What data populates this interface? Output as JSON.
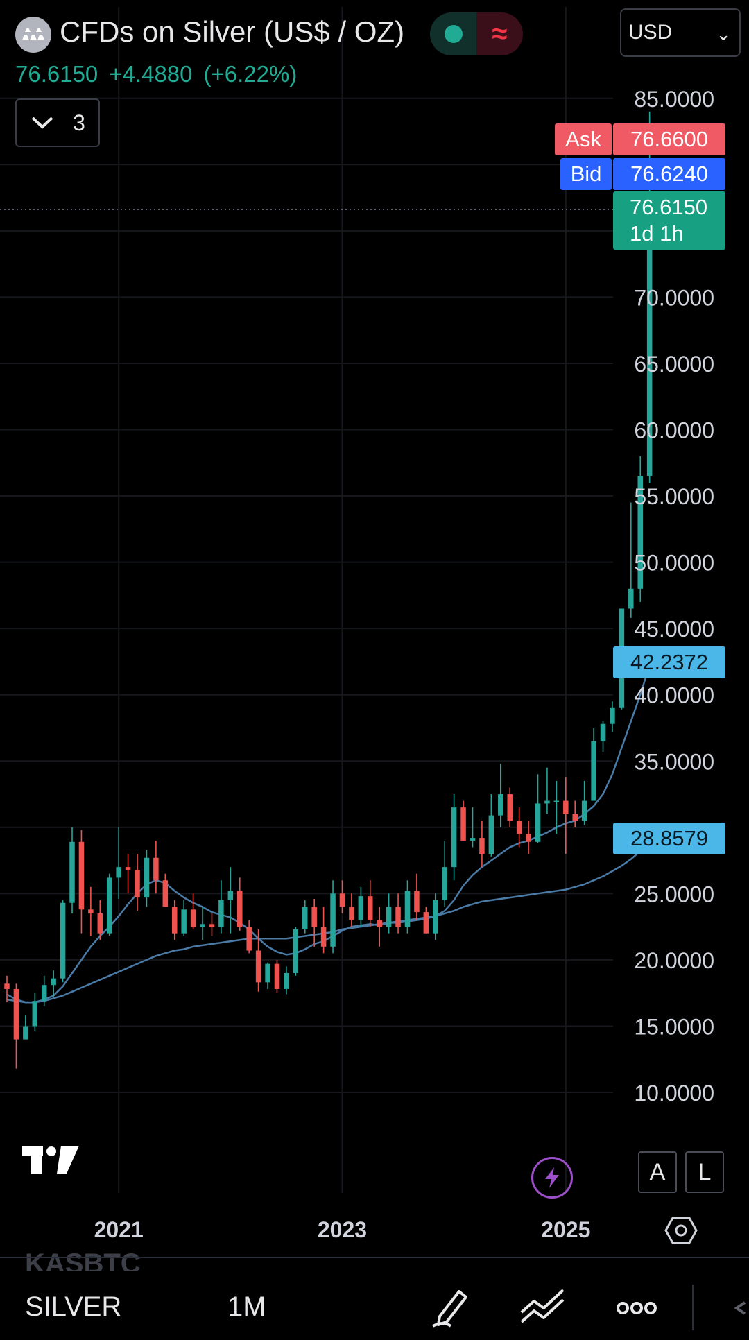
{
  "header": {
    "title": "CFDs on Silver (US$ / OZ)",
    "last_price": "76.6150",
    "change": "+4.4880",
    "change_percent": "(+6.22%)",
    "indicator_count": "3",
    "currency": "USD",
    "status_wave": "≈"
  },
  "price_tags": {
    "ask_label": "Ask",
    "ask_value": "76.6600",
    "bid_label": "Bid",
    "bid_value": "76.6240",
    "last_value": "76.6150",
    "last_countdown": "1d 1h",
    "ma1_value": "42.2372",
    "ma2_value": "28.8579"
  },
  "corner_buttons": {
    "auto": "A",
    "log": "L"
  },
  "ghost_symbol": "KASBTC",
  "toolbar": {
    "symbol": "SILVER",
    "interval": "1M"
  },
  "colors": {
    "up": "#26a69a",
    "down": "#ef5350",
    "ma": "#4a7ba6",
    "ask": "#f05a64",
    "bid": "#2962ff",
    "last": "#18a083",
    "ma_tag": "#4bb6e8"
  },
  "icons": [
    "silver-symbol-icon",
    "chevron-down-icon",
    "lightning-icon",
    "settings-hexagon-icon",
    "pencil-icon",
    "trend-lines-icon",
    "more-icon",
    "collapse-icon"
  ],
  "chart_data": {
    "type": "candlestick",
    "title": "CFDs on Silver (US$ / OZ)",
    "interval": "1M",
    "y_ticks": [
      85,
      70,
      65,
      60,
      55,
      50,
      45,
      40,
      35,
      25,
      20,
      15,
      10
    ],
    "ylim": [
      5,
      88
    ],
    "x_ticks": [
      {
        "label": "2021",
        "index": 12
      },
      {
        "label": "2023",
        "index": 36
      },
      {
        "label": "2025",
        "index": 60
      }
    ],
    "candles": [
      [
        18.2,
        18.8,
        16.8,
        17.8
      ],
      [
        17.8,
        18.2,
        11.8,
        14.0
      ],
      [
        14.0,
        15.8,
        14.0,
        15.0
      ],
      [
        15.0,
        17.5,
        14.6,
        16.9
      ],
      [
        16.9,
        18.8,
        16.5,
        18.1
      ],
      [
        18.1,
        19.2,
        17.2,
        18.6
      ],
      [
        18.6,
        24.5,
        18.3,
        24.3
      ],
      [
        24.3,
        30.0,
        23.5,
        28.9
      ],
      [
        28.9,
        29.8,
        22.0,
        23.8
      ],
      [
        23.8,
        25.5,
        21.8,
        23.5
      ],
      [
        23.5,
        24.5,
        21.5,
        22.0
      ],
      [
        22.0,
        26.5,
        21.8,
        26.2
      ],
      [
        26.2,
        30.0,
        24.6,
        27.0
      ],
      [
        27.0,
        28.0,
        25.0,
        26.8
      ],
      [
        26.8,
        28.0,
        23.7,
        24.7
      ],
      [
        24.7,
        28.3,
        24.0,
        27.7
      ],
      [
        27.7,
        29.0,
        25.0,
        26.0
      ],
      [
        26.0,
        26.5,
        24.0,
        24.0
      ],
      [
        24.0,
        24.5,
        21.5,
        22.0
      ],
      [
        22.0,
        24.5,
        21.8,
        23.8
      ],
      [
        23.8,
        25.0,
        22.3,
        22.5
      ],
      [
        22.5,
        24.0,
        21.5,
        22.7
      ],
      [
        22.7,
        23.5,
        21.8,
        22.5
      ],
      [
        22.5,
        26.0,
        22.0,
        24.5
      ],
      [
        24.5,
        27.0,
        22.0,
        25.2
      ],
      [
        25.2,
        26.2,
        22.2,
        22.5
      ],
      [
        22.5,
        23.0,
        20.5,
        20.7
      ],
      [
        20.7,
        22.3,
        17.6,
        18.3
      ],
      [
        18.3,
        19.8,
        17.8,
        19.7
      ],
      [
        19.7,
        20.0,
        17.5,
        17.8
      ],
      [
        17.8,
        19.5,
        17.4,
        19.0
      ],
      [
        19.0,
        22.5,
        18.8,
        22.3
      ],
      [
        22.3,
        24.5,
        22.0,
        24.0
      ],
      [
        24.0,
        24.6,
        21.0,
        22.5
      ],
      [
        22.5,
        24.0,
        20.5,
        21.0
      ],
      [
        21.0,
        26.0,
        20.5,
        25.0
      ],
      [
        25.0,
        26.0,
        23.5,
        24.0
      ],
      [
        24.0,
        25.0,
        22.5,
        23.0
      ],
      [
        23.0,
        25.5,
        22.5,
        24.8
      ],
      [
        24.8,
        26.0,
        22.5,
        23.0
      ],
      [
        23.0,
        24.0,
        21.0,
        22.5
      ],
      [
        22.5,
        25.0,
        22.0,
        24.0
      ],
      [
        24.0,
        25.0,
        22.0,
        22.5
      ],
      [
        22.5,
        26.0,
        22.0,
        25.2
      ],
      [
        25.2,
        26.5,
        23.0,
        23.6
      ],
      [
        23.6,
        24.0,
        22.0,
        22.0
      ],
      [
        22.0,
        25.0,
        21.5,
        24.5
      ],
      [
        24.5,
        29.0,
        24.0,
        27.0
      ],
      [
        27.0,
        32.5,
        26.0,
        31.5
      ],
      [
        31.5,
        32.0,
        29.0,
        29.0
      ],
      [
        29.0,
        31.5,
        28.5,
        29.2
      ],
      [
        29.2,
        30.5,
        27.0,
        28.0
      ],
      [
        28.0,
        32.5,
        27.8,
        30.9
      ],
      [
        30.9,
        34.8,
        30.0,
        32.5
      ],
      [
        32.5,
        33.0,
        30.0,
        30.5
      ],
      [
        30.5,
        31.5,
        28.5,
        29.5
      ],
      [
        29.5,
        30.5,
        28.0,
        28.9
      ],
      [
        28.9,
        34.0,
        28.8,
        31.8
      ],
      [
        31.8,
        34.5,
        31.0,
        32.0
      ],
      [
        32.0,
        33.5,
        29.5,
        32.0
      ],
      [
        32.0,
        33.8,
        28.0,
        31.0
      ],
      [
        31.0,
        32.0,
        30.0,
        30.5
      ],
      [
        30.5,
        33.5,
        30.2,
        32.0
      ],
      [
        32.0,
        37.5,
        32.0,
        36.5
      ],
      [
        36.5,
        38.0,
        35.7,
        37.8
      ],
      [
        37.8,
        39.5,
        37.2,
        39.0
      ],
      [
        39.0,
        46.5,
        38.9,
        46.5
      ],
      [
        46.5,
        54.5,
        45.8,
        48.0
      ],
      [
        48.0,
        58.0,
        47.0,
        56.5
      ],
      [
        56.5,
        84.0,
        56.0,
        76.615
      ]
    ],
    "ma_short": [
      17.4,
      17.0,
      16.8,
      16.8,
      17.0,
      17.3,
      18.0,
      19.0,
      20.0,
      21.0,
      21.8,
      22.5,
      23.3,
      24.2,
      25.0,
      25.7,
      26.0,
      25.8,
      25.2,
      24.7,
      24.3,
      24.0,
      23.6,
      23.4,
      23.2,
      22.8,
      22.3,
      21.6,
      21.0,
      20.6,
      20.4,
      20.5,
      20.8,
      21.2,
      21.4,
      21.8,
      22.2,
      22.5,
      22.6,
      22.7,
      22.6,
      22.8,
      22.8,
      22.9,
      23.0,
      23.1,
      23.3,
      23.7,
      24.5,
      25.6,
      26.4,
      27.0,
      27.5,
      28.0,
      28.5,
      28.8,
      29.0,
      29.3,
      29.6,
      30.0,
      30.3,
      30.5,
      31.0,
      31.6,
      32.5,
      34.0,
      36.0,
      38.0,
      40.0,
      42.2372
    ],
    "ma_long": [
      17.0,
      16.9,
      16.8,
      16.8,
      16.9,
      17.1,
      17.3,
      17.6,
      17.9,
      18.2,
      18.5,
      18.8,
      19.1,
      19.4,
      19.7,
      20.0,
      20.3,
      20.5,
      20.7,
      20.8,
      21.0,
      21.1,
      21.2,
      21.3,
      21.4,
      21.5,
      21.6,
      21.6,
      21.6,
      21.6,
      21.6,
      21.7,
      21.8,
      21.9,
      22.0,
      22.1,
      22.3,
      22.4,
      22.5,
      22.6,
      22.7,
      22.8,
      22.9,
      23.0,
      23.1,
      23.2,
      23.3,
      23.5,
      23.7,
      24.0,
      24.2,
      24.4,
      24.5,
      24.6,
      24.7,
      24.8,
      24.9,
      25.0,
      25.1,
      25.2,
      25.3,
      25.5,
      25.7,
      26.0,
      26.3,
      26.7,
      27.1,
      27.6,
      28.2,
      28.8579
    ]
  }
}
